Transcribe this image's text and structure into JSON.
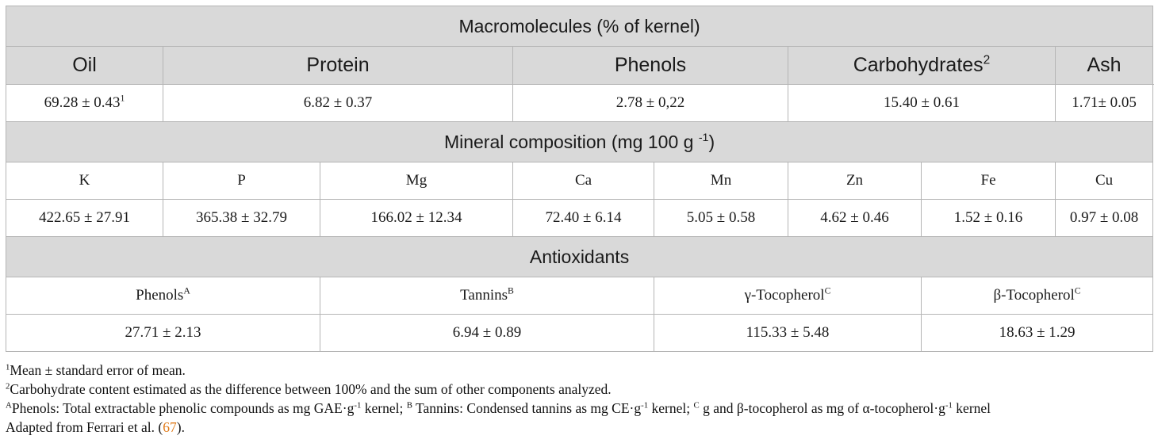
{
  "table": {
    "macro": {
      "title": "Macromolecules (% of kernel)",
      "headers": [
        "Oil",
        "Protein",
        "Phenols",
        "Carbohydrates",
        "Ash"
      ],
      "carb_sup": "2",
      "values": [
        "69.28 ± 0.43",
        "6.82 ± 0.37",
        "2.78 ± 0,22",
        "15.40 ± 0.61",
        "1.71± 0.05"
      ],
      "oil_sup": "1"
    },
    "minerals": {
      "title_main": "Mineral composition (mg 100 g ",
      "title_sup": "-1",
      "title_end": ")",
      "headers": [
        "K",
        "P",
        "Mg",
        "Ca",
        "Mn",
        "Zn",
        "Fe",
        "Cu"
      ],
      "values": [
        "422.65 ± 27.91",
        "365.38 ± 32.79",
        "166.02 ± 12.34",
        "72.40 ± 6.14",
        "5.05 ± 0.58",
        "4.62 ± 0.46",
        "1.52 ± 0.16",
        "0.97 ± 0.08"
      ]
    },
    "antioxidants": {
      "title": "Antioxidants",
      "headers": [
        "Phenols",
        "Tannins",
        "γ-Tocopherol",
        "β-Tocopherol"
      ],
      "header_sups": [
        "A",
        "B",
        "C",
        "C"
      ],
      "values": [
        "27.71 ± 2.13",
        "6.94 ± 0.89",
        "115.33 ± 5.48",
        "18.63 ± 1.29"
      ]
    }
  },
  "footnotes": {
    "n1_sup": "1",
    "n1": "Mean ± standard error of mean.",
    "n2_sup": "2",
    "n2": "Carbohydrate content estimated as the difference between 100% and the sum of other components analyzed.",
    "n3_supA": "A",
    "n3_a": "Phenols: Total extractable phenolic compounds as mg GAE·g",
    "n3_exp1": "-1",
    "n3_b": " kernel; ",
    "n3_supB": "B",
    "n3_c": " Tannins: Condensed tannins as mg CE·g",
    "n3_exp2": "-1",
    "n3_d": " kernel; ",
    "n3_supC": "C",
    "n3_e": " g and β-tocopherol as mg of α-tocopherol·g",
    "n3_exp3": "-1",
    "n3_f": " kernel",
    "n4_a": "Adapted from Ferrari et al. (",
    "n4_ref": "67",
    "n4_b": ")."
  }
}
